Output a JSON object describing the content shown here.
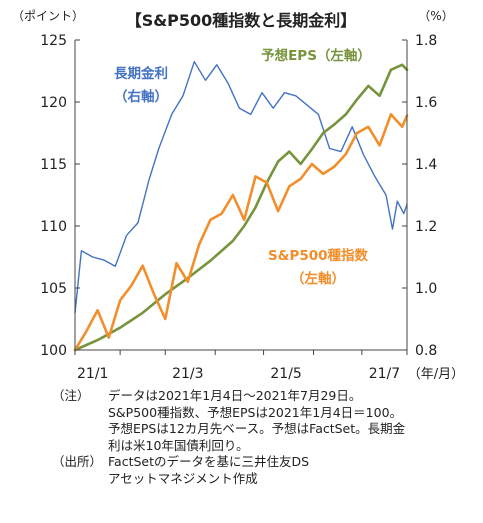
{
  "chart_data": {
    "type": "line",
    "title": "【S&P500種指数と長期金利】",
    "left_axis": {
      "unit_label": "（ポイント）",
      "ylim": [
        100,
        125
      ],
      "ticks": [
        "100",
        "105",
        "110",
        "115",
        "120",
        "125"
      ]
    },
    "right_axis": {
      "unit_label": "（%）",
      "ylim": [
        0.8,
        1.8
      ],
      "ticks": [
        "0.8",
        "1.0",
        "1.2",
        "1.4",
        "1.6",
        "1.8"
      ]
    },
    "x_axis": {
      "start": "2021-01-04",
      "end": "2021-07-29",
      "ticks": [
        "21/1",
        "21/3",
        "21/5",
        "21/7"
      ],
      "unit_label": "（年/月）"
    },
    "grid": false,
    "series": [
      {
        "name": "S&P500種指数",
        "label_lines": [
          "S&P500種指数",
          "（左軸）"
        ],
        "axis": "left",
        "color": "#f28e2b",
        "points": [
          [
            "2021-01-04",
            100.0
          ],
          [
            "2021-01-11",
            101.5
          ],
          [
            "2021-01-18",
            103.2
          ],
          [
            "2021-01-25",
            101.0
          ],
          [
            "2021-02-01",
            104.0
          ],
          [
            "2021-02-08",
            105.2
          ],
          [
            "2021-02-15",
            106.8
          ],
          [
            "2021-02-22",
            104.5
          ],
          [
            "2021-03-01",
            102.5
          ],
          [
            "2021-03-08",
            107.0
          ],
          [
            "2021-03-15",
            105.5
          ],
          [
            "2021-03-22",
            108.5
          ],
          [
            "2021-03-29",
            110.5
          ],
          [
            "2021-04-05",
            111.0
          ],
          [
            "2021-04-12",
            112.5
          ],
          [
            "2021-04-19",
            110.5
          ],
          [
            "2021-04-26",
            114.0
          ],
          [
            "2021-05-03",
            113.5
          ],
          [
            "2021-05-10",
            111.2
          ],
          [
            "2021-05-17",
            113.2
          ],
          [
            "2021-05-24",
            113.8
          ],
          [
            "2021-05-31",
            115.0
          ],
          [
            "2021-06-07",
            114.2
          ],
          [
            "2021-06-14",
            114.8
          ],
          [
            "2021-06-21",
            115.8
          ],
          [
            "2021-06-28",
            117.5
          ],
          [
            "2021-07-05",
            118.0
          ],
          [
            "2021-07-12",
            116.5
          ],
          [
            "2021-07-19",
            119.0
          ],
          [
            "2021-07-26",
            118.0
          ],
          [
            "2021-07-29",
            118.9
          ]
        ]
      },
      {
        "name": "予想EPS",
        "label_lines": [
          "予想EPS（左軸）"
        ],
        "axis": "left",
        "color": "#77933c",
        "points": [
          [
            "2021-01-04",
            100.0
          ],
          [
            "2021-01-18",
            100.8
          ],
          [
            "2021-02-01",
            101.8
          ],
          [
            "2021-02-15",
            103.0
          ],
          [
            "2021-03-01",
            104.5
          ],
          [
            "2021-03-15",
            105.8
          ],
          [
            "2021-03-29",
            107.2
          ],
          [
            "2021-04-12",
            108.8
          ],
          [
            "2021-04-19",
            110.0
          ],
          [
            "2021-04-26",
            111.5
          ],
          [
            "2021-05-03",
            113.5
          ],
          [
            "2021-05-10",
            115.2
          ],
          [
            "2021-05-17",
            116.0
          ],
          [
            "2021-05-24",
            115.0
          ],
          [
            "2021-05-31",
            116.2
          ],
          [
            "2021-06-07",
            117.5
          ],
          [
            "2021-06-14",
            118.2
          ],
          [
            "2021-06-21",
            119.0
          ],
          [
            "2021-06-28",
            120.2
          ],
          [
            "2021-07-05",
            121.3
          ],
          [
            "2021-07-12",
            120.5
          ],
          [
            "2021-07-19",
            122.6
          ],
          [
            "2021-07-26",
            123.0
          ],
          [
            "2021-07-29",
            122.6
          ]
        ]
      },
      {
        "name": "長期金利",
        "label_lines": [
          "長期金利",
          "（右軸）"
        ],
        "axis": "right",
        "color": "#4472c4",
        "points": [
          [
            "2021-01-04",
            0.92
          ],
          [
            "2021-01-08",
            1.12
          ],
          [
            "2021-01-15",
            1.1
          ],
          [
            "2021-01-22",
            1.09
          ],
          [
            "2021-01-29",
            1.07
          ],
          [
            "2021-02-05",
            1.17
          ],
          [
            "2021-02-12",
            1.21
          ],
          [
            "2021-02-19",
            1.35
          ],
          [
            "2021-02-25",
            1.45
          ],
          [
            "2021-03-05",
            1.56
          ],
          [
            "2021-03-12",
            1.62
          ],
          [
            "2021-03-19",
            1.73
          ],
          [
            "2021-03-26",
            1.67
          ],
          [
            "2021-04-02",
            1.72
          ],
          [
            "2021-04-09",
            1.66
          ],
          [
            "2021-04-16",
            1.58
          ],
          [
            "2021-04-23",
            1.56
          ],
          [
            "2021-04-30",
            1.63
          ],
          [
            "2021-05-07",
            1.58
          ],
          [
            "2021-05-14",
            1.63
          ],
          [
            "2021-05-21",
            1.62
          ],
          [
            "2021-05-28",
            1.59
          ],
          [
            "2021-06-04",
            1.56
          ],
          [
            "2021-06-11",
            1.45
          ],
          [
            "2021-06-18",
            1.44
          ],
          [
            "2021-06-25",
            1.52
          ],
          [
            "2021-07-02",
            1.43
          ],
          [
            "2021-07-09",
            1.36
          ],
          [
            "2021-07-16",
            1.3
          ],
          [
            "2021-07-20",
            1.19
          ],
          [
            "2021-07-23",
            1.28
          ],
          [
            "2021-07-27",
            1.24
          ],
          [
            "2021-07-29",
            1.27
          ]
        ]
      }
    ]
  },
  "notes": {
    "note_tag": "（注）",
    "note_lines": [
      "データは2021年1月4日～2021年7月29日。",
      "S&P500種指数、予想EPSは2021年1月4日＝100。",
      "予想EPSは12カ月先ベース。予想はFactSet。長期金",
      "利は米10年国債利回り。"
    ],
    "source_tag": "（出所）",
    "source_lines": [
      "FactSetのデータを基に三井住友DS",
      "アセットマネジメント作成"
    ]
  }
}
